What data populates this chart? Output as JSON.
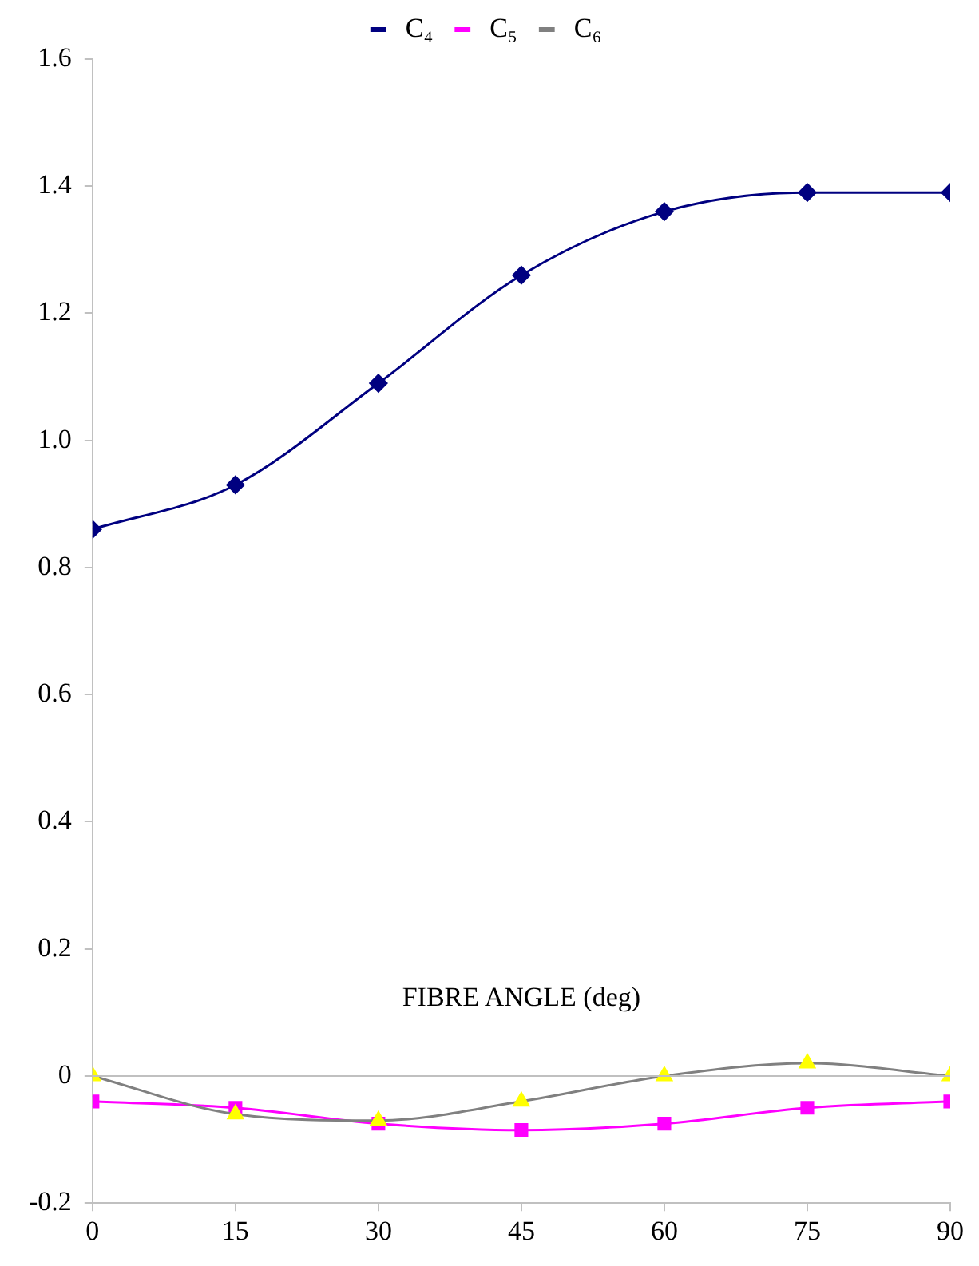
{
  "chart_data": {
    "type": "line",
    "xlabel": "FIBRE ANGLE (deg)",
    "x": [
      0,
      15,
      30,
      45,
      60,
      75,
      90
    ],
    "series": [
      {
        "name": "C₄",
        "color": "#000080",
        "marker": "diamond",
        "values": [
          0.86,
          0.93,
          1.09,
          1.26,
          1.36,
          1.39,
          1.39
        ]
      },
      {
        "name": "C₅",
        "color": "#ff00ff",
        "marker": "square",
        "values": [
          -0.04,
          -0.05,
          -0.075,
          -0.085,
          -0.075,
          -0.05,
          -0.04
        ]
      },
      {
        "name": "C₆",
        "color": "#808080",
        "colors": [
          "#ffff00",
          "#ffff00",
          "#ffff00",
          "#ffff00",
          "#ffff00",
          "#ffff00",
          "#ffff00"
        ],
        "marker": "triangle",
        "values": [
          0,
          -0.06,
          -0.07,
          -0.04,
          0,
          0.02,
          0
        ]
      }
    ],
    "xlim": [
      0,
      90
    ],
    "xticks": [
      0,
      15,
      30,
      45,
      60,
      75,
      90
    ],
    "ylim": [
      -0.2,
      1.6
    ],
    "yticks": [
      {
        "value": -0.2,
        "label": "-0.2"
      },
      0,
      {
        "value": 0.2,
        "label": "0.2"
      },
      {
        "value": 0.4,
        "label": "0.4"
      },
      {
        "value": 0.6,
        "label": "0.6"
      },
      {
        "value": 0.8,
        "label": "0.8"
      },
      {
        "value": 1,
        "label": "1.0"
      },
      {
        "value": 1.2,
        "label": "1.2"
      },
      {
        "value": 1.4,
        "label": "1.4"
      },
      {
        "value": 1.6,
        "label": "1.6"
      }
    ],
    "ref_lines": [
      {
        "axis": "y",
        "value": 0,
        "color": "#c0c0c0"
      }
    ],
    "grid": false,
    "legend": "top",
    "line_style": "solid"
  }
}
